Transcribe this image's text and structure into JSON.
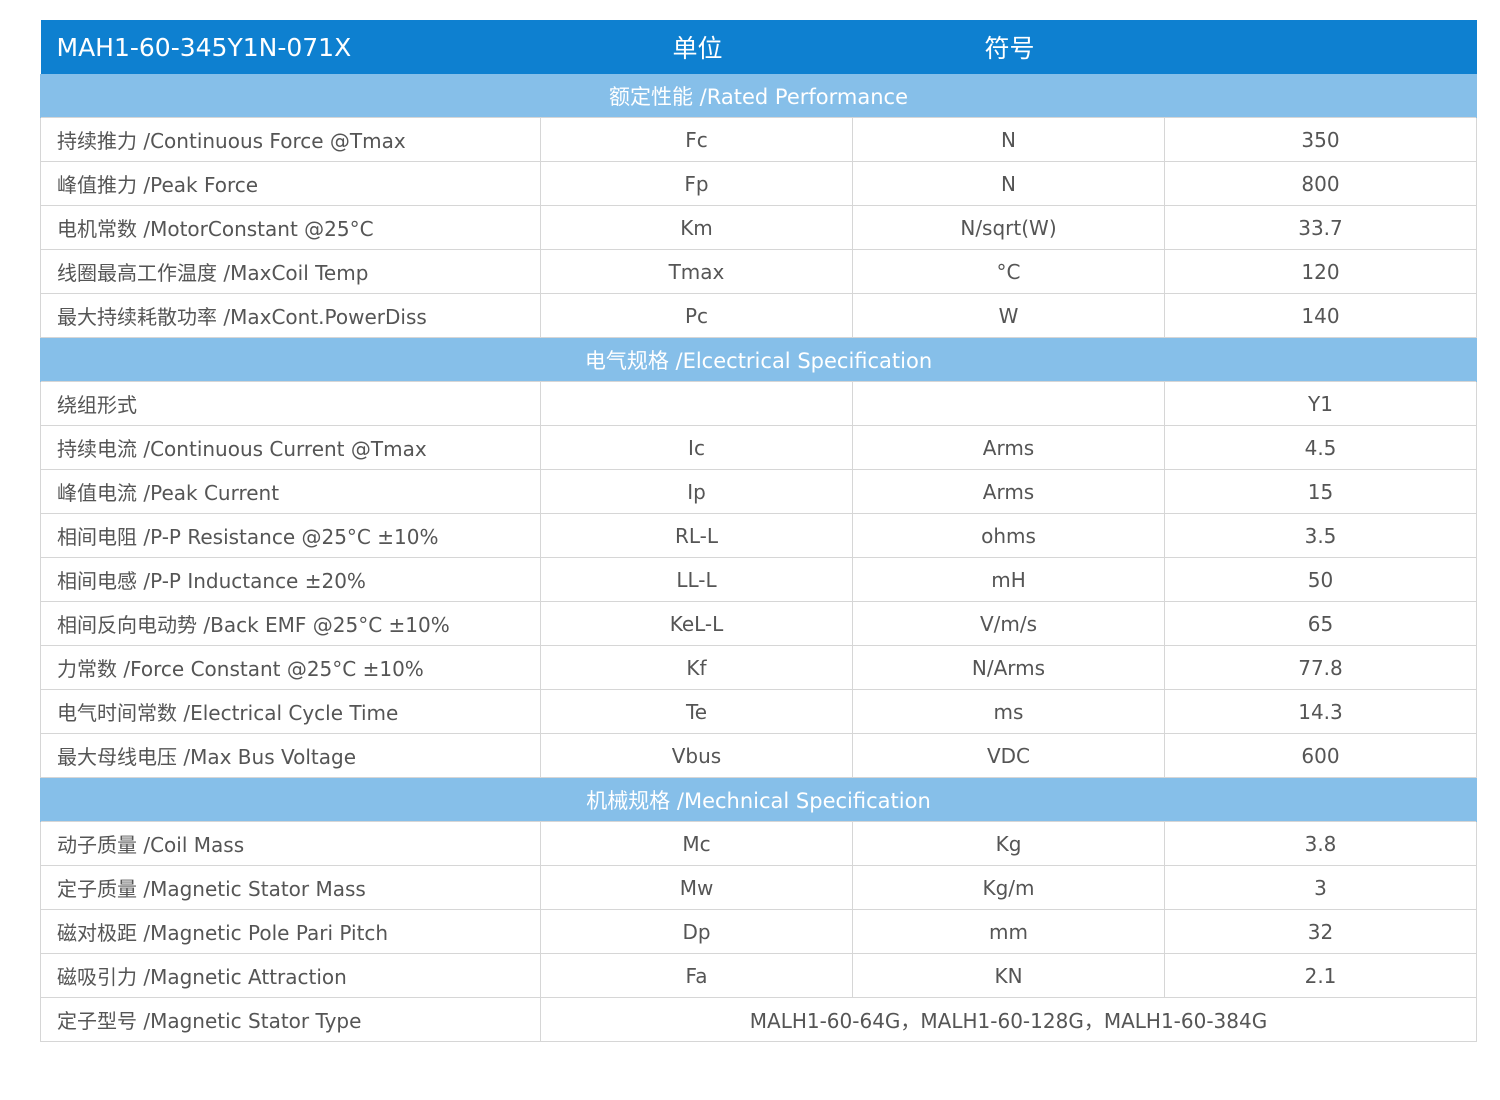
{
  "header": {
    "model": "MAH1-60-345Y1N-071X",
    "unit_label": "单位",
    "symbol_label": "符号"
  },
  "sections": [
    {
      "title": "额定性能 /Rated Performance",
      "rows": [
        {
          "param": "持续推力 /Continuous Force @Tmax",
          "unit": "Fc",
          "symbol": "N",
          "value": "350"
        },
        {
          "param": "峰值推力 /Peak Force",
          "unit": "Fp",
          "symbol": "N",
          "value": "800"
        },
        {
          "param": "电机常数 /MotorConstant @25°C",
          "unit": "Km",
          "symbol": "N/sqrt(W)",
          "value": "33.7"
        },
        {
          "param": "线圈最高工作温度 /MaxCoil Temp",
          "unit": "Tmax",
          "symbol": "°C",
          "value": "120"
        },
        {
          "param": "最大持续耗散功率 /MaxCont.PowerDiss",
          "unit": "Pc",
          "symbol": "W",
          "value": "140"
        }
      ]
    },
    {
      "title": "电气规格 /Elcectrical Specification",
      "rows": [
        {
          "param": "绕组形式",
          "unit": "",
          "symbol": "",
          "value": "Y1"
        },
        {
          "param": "持续电流 /Continuous Current @Tmax",
          "unit": "Ic",
          "symbol": "Arms",
          "value": "4.5"
        },
        {
          "param": "峰值电流 /Peak Current",
          "unit": "Ip",
          "symbol": "Arms",
          "value": "15"
        },
        {
          "param": "相间电阻 /P-P Resistance @25°C ±10%",
          "unit": "RL-L",
          "symbol": "ohms",
          "value": "3.5"
        },
        {
          "param": "相间电感 /P-P Inductance ±20%",
          "unit": "LL-L",
          "symbol": "mH",
          "value": "50"
        },
        {
          "param": "相间反向电动势 /Back EMF @25°C ±10%",
          "unit": "KeL-L",
          "symbol": "V/m/s",
          "value": "65"
        },
        {
          "param": "力常数 /Force Constant @25°C ±10%",
          "unit": "Kf",
          "symbol": "N/Arms",
          "value": "77.8"
        },
        {
          "param": "电气时间常数 /Electrical Cycle Time",
          "unit": "Te",
          "symbol": "ms",
          "value": "14.3"
        },
        {
          "param": "最大母线电压 /Max Bus Voltage",
          "unit": "Vbus",
          "symbol": "VDC",
          "value": "600"
        }
      ]
    },
    {
      "title": "机械规格 /Mechnical Specification",
      "rows": [
        {
          "param": "动子质量 /Coil Mass",
          "unit": "Mc",
          "symbol": "Kg",
          "value": "3.8"
        },
        {
          "param": "定子质量 /Magnetic Stator Mass",
          "unit": "Mw",
          "symbol": "Kg/m",
          "value": "3"
        },
        {
          "param": "磁对极距 /Magnetic Pole Pari Pitch",
          "unit": "Dp",
          "symbol": "mm",
          "value": "32"
        },
        {
          "param": "磁吸引力 /Magnetic Attraction",
          "unit": "Fa",
          "symbol": "KN",
          "value": "2.1"
        }
      ]
    }
  ],
  "stator_type": {
    "param": "定子型号 /Magnetic Stator Type",
    "value": "MALH1-60-64G，MALH1-60-128G，MALH1-60-384G"
  }
}
